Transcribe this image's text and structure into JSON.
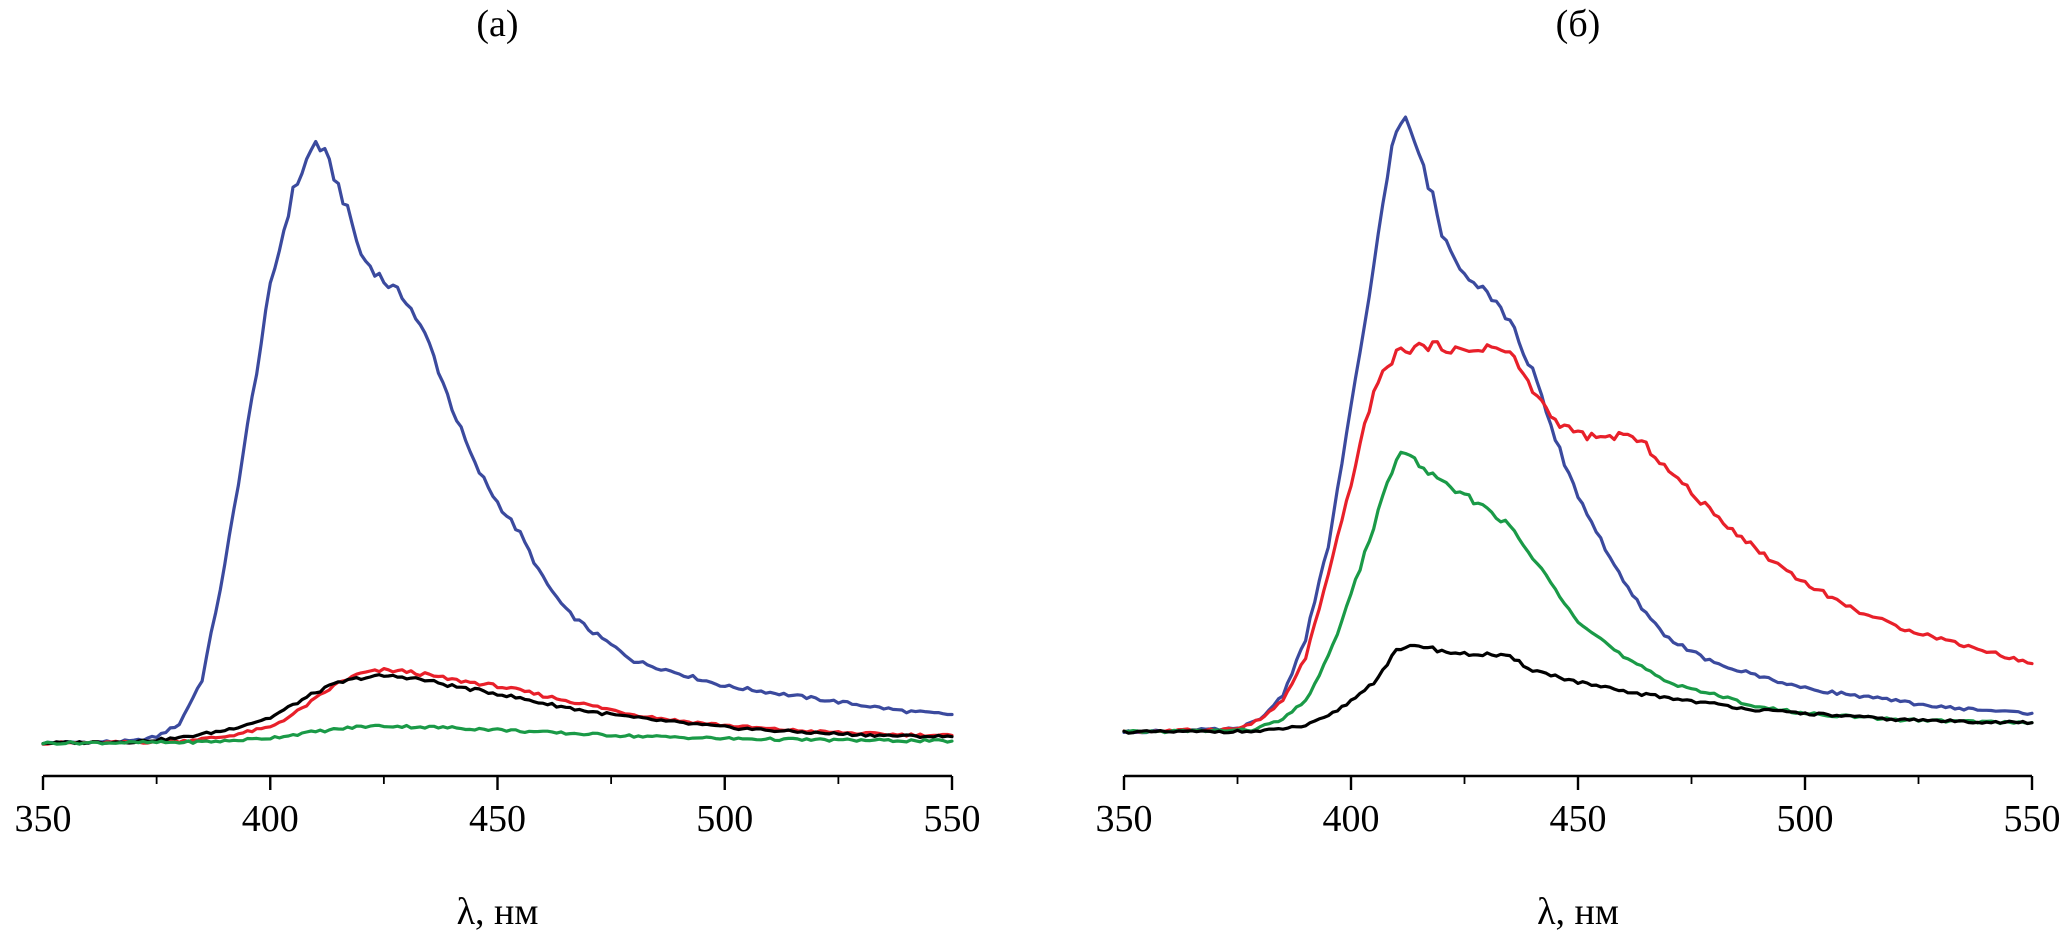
{
  "chart_data": [
    {
      "type": "line",
      "title": "(а)",
      "xlabel": "λ, нм",
      "ylabel": "",
      "xlim": [
        350,
        550
      ],
      "xticks": [
        350,
        400,
        450,
        500,
        550
      ],
      "yaxis_shown": false,
      "ylim": [
        0,
        1.0
      ],
      "grid": false,
      "legend": "none",
      "series": [
        {
          "color": "#3b4a9e",
          "x": [
            350,
            370,
            375,
            380,
            385,
            390,
            395,
            400,
            405,
            408,
            410,
            412,
            415,
            418,
            420,
            425,
            430,
            435,
            440,
            445,
            450,
            455,
            460,
            465,
            470,
            480,
            490,
            500,
            510,
            520,
            530,
            540,
            550
          ],
          "y": [
            0.0,
            0.003,
            0.01,
            0.03,
            0.1,
            0.28,
            0.5,
            0.72,
            0.87,
            0.92,
            0.95,
            0.93,
            0.88,
            0.82,
            0.77,
            0.73,
            0.7,
            0.63,
            0.53,
            0.44,
            0.38,
            0.33,
            0.26,
            0.21,
            0.18,
            0.13,
            0.11,
            0.09,
            0.08,
            0.07,
            0.06,
            0.05,
            0.045
          ]
        },
        {
          "color": "#e8202a",
          "x": [
            350,
            370,
            380,
            390,
            400,
            405,
            410,
            415,
            420,
            425,
            430,
            435,
            440,
            450,
            460,
            470,
            480,
            490,
            500,
            510,
            520,
            530,
            540,
            550
          ],
          "y": [
            0.0,
            0.001,
            0.003,
            0.01,
            0.025,
            0.045,
            0.07,
            0.095,
            0.11,
            0.115,
            0.113,
            0.107,
            0.1,
            0.09,
            0.075,
            0.06,
            0.045,
            0.035,
            0.028,
            0.022,
            0.018,
            0.015,
            0.013,
            0.012
          ]
        },
        {
          "color": "#000000",
          "x": [
            350,
            370,
            380,
            390,
            400,
            405,
            410,
            415,
            420,
            425,
            430,
            435,
            440,
            450,
            460,
            470,
            480,
            490,
            500,
            510,
            520,
            530,
            540,
            550
          ],
          "y": [
            0.0,
            0.002,
            0.008,
            0.02,
            0.04,
            0.06,
            0.08,
            0.095,
            0.103,
            0.106,
            0.104,
            0.098,
            0.09,
            0.078,
            0.063,
            0.05,
            0.04,
            0.032,
            0.025,
            0.02,
            0.016,
            0.013,
            0.011,
            0.01
          ]
        },
        {
          "color": "#1a9a47",
          "x": [
            350,
            380,
            390,
            400,
            410,
            420,
            425,
            430,
            440,
            450,
            460,
            480,
            500,
            520,
            550
          ],
          "y": [
            0.0,
            0.001,
            0.003,
            0.008,
            0.018,
            0.026,
            0.027,
            0.026,
            0.024,
            0.021,
            0.017,
            0.011,
            0.007,
            0.005,
            0.003
          ]
        }
      ]
    },
    {
      "type": "line",
      "title": "(б)",
      "xlabel": "λ, нм",
      "ylabel": "",
      "xlim": [
        350,
        550
      ],
      "xticks": [
        350,
        400,
        450,
        500,
        550
      ],
      "yaxis_shown": false,
      "ylim": [
        0,
        1.0
      ],
      "grid": false,
      "legend": "none",
      "series": [
        {
          "color": "#3b4a9e",
          "x": [
            350,
            375,
            380,
            385,
            390,
            395,
            400,
            403,
            406,
            408,
            410,
            412,
            414,
            418,
            420,
            425,
            430,
            435,
            440,
            445,
            450,
            455,
            460,
            465,
            470,
            480,
            490,
            500,
            510,
            520,
            530,
            540,
            550
          ],
          "y": [
            0.0,
            0.005,
            0.02,
            0.06,
            0.15,
            0.3,
            0.52,
            0.65,
            0.8,
            0.9,
            0.97,
            0.98,
            0.95,
            0.86,
            0.8,
            0.74,
            0.71,
            0.66,
            0.58,
            0.47,
            0.38,
            0.31,
            0.24,
            0.19,
            0.15,
            0.11,
            0.09,
            0.07,
            0.06,
            0.05,
            0.04,
            0.035,
            0.03
          ]
        },
        {
          "color": "#e8202a",
          "x": [
            350,
            375,
            380,
            385,
            390,
            395,
            400,
            405,
            410,
            415,
            420,
            425,
            430,
            435,
            440,
            445,
            450,
            455,
            460,
            465,
            470,
            480,
            490,
            500,
            510,
            520,
            530,
            540,
            550
          ],
          "y": [
            0.0,
            0.005,
            0.02,
            0.05,
            0.12,
            0.25,
            0.4,
            0.55,
            0.61,
            0.62,
            0.62,
            0.61,
            0.62,
            0.61,
            0.55,
            0.5,
            0.48,
            0.47,
            0.48,
            0.46,
            0.42,
            0.35,
            0.29,
            0.24,
            0.2,
            0.17,
            0.15,
            0.13,
            0.11
          ]
        },
        {
          "color": "#1a9a47",
          "x": [
            350,
            378,
            385,
            390,
            395,
            400,
            405,
            408,
            410,
            412,
            415,
            420,
            425,
            430,
            435,
            440,
            445,
            450,
            455,
            460,
            465,
            470,
            480,
            490,
            500,
            510,
            520,
            530,
            540,
            550
          ],
          "y": [
            0.0,
            0.003,
            0.02,
            0.05,
            0.12,
            0.22,
            0.33,
            0.4,
            0.44,
            0.45,
            0.43,
            0.4,
            0.38,
            0.36,
            0.33,
            0.28,
            0.23,
            0.18,
            0.15,
            0.12,
            0.1,
            0.08,
            0.06,
            0.04,
            0.03,
            0.025,
            0.02,
            0.018,
            0.016,
            0.015
          ]
        },
        {
          "color": "#000000",
          "x": [
            350,
            380,
            390,
            395,
            400,
            405,
            410,
            415,
            420,
            425,
            430,
            435,
            440,
            450,
            460,
            470,
            480,
            490,
            500,
            510,
            520,
            530,
            540,
            550
          ],
          "y": [
            0.0,
            0.001,
            0.01,
            0.025,
            0.05,
            0.08,
            0.13,
            0.14,
            0.13,
            0.125,
            0.125,
            0.12,
            0.1,
            0.08,
            0.065,
            0.055,
            0.045,
            0.035,
            0.03,
            0.025,
            0.02,
            0.018,
            0.016,
            0.015
          ]
        }
      ]
    }
  ]
}
